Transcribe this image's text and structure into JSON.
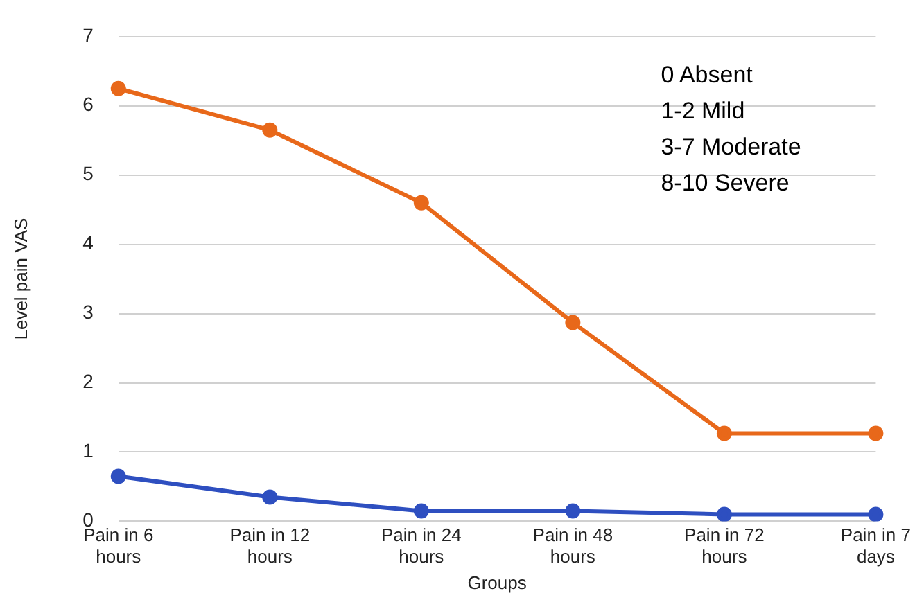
{
  "chart_data": {
    "type": "line",
    "xlabel": "Groups",
    "ylabel": "Level pain VAS",
    "categories": [
      "Pain in 6 hours",
      "Pain in 12 hours",
      "Pain in 24 hours",
      "Pain in 48 hours",
      "Pain in 72 hours",
      "Pain in 7 days"
    ],
    "series": [
      {
        "color": "#e8681a",
        "values": [
          6.25,
          5.65,
          4.6,
          2.87,
          1.27,
          1.27
        ]
      },
      {
        "color": "#2e4fc0",
        "values": [
          0.65,
          0.35,
          0.15,
          0.15,
          0.1,
          0.1
        ]
      }
    ],
    "ylim": [
      0,
      7
    ],
    "yticks": [
      0,
      1,
      2,
      3,
      4,
      5,
      6,
      7
    ],
    "grid": "y",
    "legend": false,
    "marker": "circle",
    "line_style": "solid",
    "annotations": [
      "0 Absent",
      "1-2 Mild",
      "3-7 Moderate",
      "8-10 Severe"
    ]
  }
}
